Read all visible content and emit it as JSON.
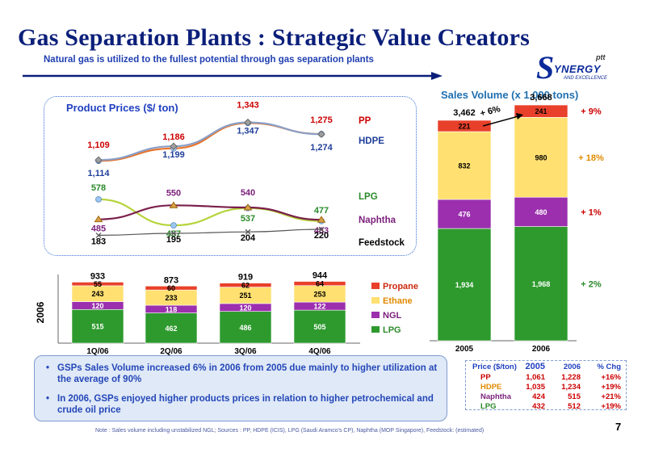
{
  "slide": {
    "title": "Gas Separation Plants : Strategic Value Creators",
    "subtitle": "Natural gas is utilized to the fullest potential through gas separation plants",
    "page_number": "7",
    "year_label": "2006",
    "note": "Note : Sales volume including unstabilized NGL; Sources : PP, HDPE (ICIS), LPG (Saudi Aramco's CP), Naphtha (MOP Singapore), Feedstock: (estimated)"
  },
  "logo": {
    "text": "YNERGY",
    "letter": "S",
    "tagline": "AND EXCELLENCE",
    "brand": "ptt"
  },
  "summary": {
    "bullets": [
      "GSPs Sales Volume increased 6%  in 2006 from 2005 due mainly to higher utilization at the average of 90%",
      "In 2006, GSPs enjoyed higher products prices in relation to higher petrochemical and crude oil price"
    ]
  },
  "price_table": {
    "headers": [
      "Price ($/ton)",
      "2005",
      "2006",
      "% Chg"
    ],
    "rows": [
      {
        "product": "PP",
        "v2005": "1,061",
        "v2006": "1,228",
        "chg": "+16%",
        "color": "#cc0000"
      },
      {
        "product": "HDPE",
        "v2005": "1,035",
        "v2006": "1,234",
        "chg": "+19%",
        "color": "#e08a00"
      },
      {
        "product": "Naphtha",
        "v2005": "424",
        "v2006": "515",
        "chg": "+21%",
        "color": "#7a1f7a"
      },
      {
        "product": "LPG",
        "v2005": "432",
        "v2006": "512",
        "chg": "+19%",
        "color": "#2a8a2a"
      }
    ]
  },
  "chart_data": [
    {
      "type": "line",
      "title": "Product Prices ($/ ton)",
      "categories": [
        "1Q/06",
        "2Q/06",
        "3Q/06",
        "4Q/06"
      ],
      "series": [
        {
          "name": "PP",
          "values": [
            1109,
            1186,
            1343,
            1275
          ],
          "labels": [
            "1,109",
            "1,186",
            "1,343",
            "1,275"
          ],
          "color": "#e8732a",
          "label_color": "#cc0000"
        },
        {
          "name": "HDPE",
          "values": [
            1114,
            1199,
            1347,
            1274
          ],
          "labels": [
            "1,114",
            "1,199",
            "1,347",
            "1,274"
          ],
          "color": "#8aa0c8",
          "label_color": "#1f3f9a"
        },
        {
          "name": "LPG",
          "values": [
            578,
            457,
            537,
            477
          ],
          "labels": [
            "578",
            "457",
            "537",
            "477"
          ],
          "color": "#b5d43a",
          "label_color": "#2a8a2a"
        },
        {
          "name": "Naphtha",
          "values": [
            485,
            550,
            540,
            483
          ],
          "labels": [
            "485",
            "550",
            "540",
            "483"
          ],
          "color": "#7a1f4a",
          "label_color": "#7a1f7a"
        },
        {
          "name": "Feedstock",
          "values": [
            183,
            195,
            204,
            220
          ],
          "labels": [
            "183",
            "195",
            "204",
            "220"
          ],
          "color": "#555555",
          "label_color": "#000000"
        }
      ]
    },
    {
      "type": "bar",
      "stacked": true,
      "categories": [
        "1Q/06",
        "2Q/06",
        "3Q/06",
        "4Q/06"
      ],
      "totals": [
        "933",
        "873",
        "919",
        "944"
      ],
      "series": [
        {
          "name": "LPG",
          "values": [
            515,
            462,
            486,
            505
          ],
          "color": "#2e9a2e"
        },
        {
          "name": "NGL",
          "values": [
            120,
            118,
            120,
            122
          ],
          "color": "#9b2fae"
        },
        {
          "name": "Ethane",
          "values": [
            243,
            233,
            251,
            253
          ],
          "color": "#ffe070"
        },
        {
          "name": "Propane",
          "values": [
            55,
            60,
            62,
            64
          ],
          "color": "#e8402a"
        }
      ],
      "legend": [
        "Propane",
        "Ethane",
        "NGL",
        "LPG"
      ],
      "legend_position": "right"
    },
    {
      "type": "bar",
      "stacked": true,
      "title": "Sales Volume (x 1,000 tons)",
      "categories": [
        "2005",
        "2006"
      ],
      "totals": [
        "3,462",
        "3,668"
      ],
      "growth_label": "+ 6%",
      "series": [
        {
          "name": "LPG",
          "values": [
            1934,
            1968
          ],
          "labels": [
            "1,934",
            "1,968"
          ],
          "change": "+ 2%",
          "color": "#2e9a2e"
        },
        {
          "name": "NGL",
          "values": [
            476,
            480
          ],
          "labels": [
            "476",
            "480"
          ],
          "change": "+ 1%",
          "color": "#9b2fae"
        },
        {
          "name": "Ethane",
          "values": [
            832,
            980
          ],
          "labels": [
            "832",
            "980"
          ],
          "change": "+ 18%",
          "color": "#ffe070"
        },
        {
          "name": "Propane",
          "values": [
            221,
            241
          ],
          "labels": [
            "221",
            "241"
          ],
          "change": "+ 9%",
          "color": "#e8402a"
        }
      ]
    }
  ]
}
